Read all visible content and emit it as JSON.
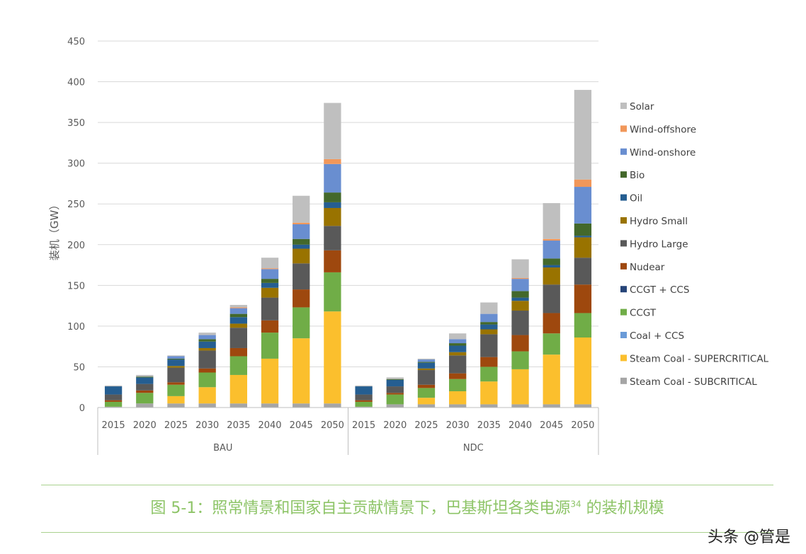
{
  "chart_data": {
    "type": "bar",
    "stacked": true,
    "ylabel": "装机（GW）",
    "ylim": [
      0,
      450
    ],
    "yticks": [
      "0",
      "50",
      "100",
      "150",
      "200",
      "250",
      "300",
      "350",
      "400",
      "450"
    ],
    "grid": true,
    "legend_position": "right",
    "groups": [
      "BAU",
      "NDC"
    ],
    "categories": [
      "2015",
      "2020",
      "2025",
      "2030",
      "2035",
      "2040",
      "2045",
      "2050"
    ],
    "series": [
      {
        "name": "Steam Coal - SUBCRITICAL",
        "color": "#a5a5a5",
        "values": {
          "BAU": [
            1,
            5,
            5,
            5,
            5,
            5,
            5,
            5
          ],
          "NDC": [
            1,
            4,
            4,
            4,
            4,
            4,
            4,
            4
          ]
        }
      },
      {
        "name": "Steam Coal - SUPERCRITICAL",
        "color": "#fbbf2d",
        "values": {
          "BAU": [
            0,
            0,
            9,
            20,
            35,
            55,
            80,
            113
          ],
          "NDC": [
            0,
            0,
            8,
            16,
            28,
            43,
            61,
            82
          ]
        }
      },
      {
        "name": "Coal + CCS",
        "color": "#6a9bd8",
        "values": {
          "BAU": [
            0,
            0,
            0,
            0,
            0,
            0,
            0,
            0
          ],
          "NDC": [
            0,
            0,
            0,
            0,
            0,
            0,
            0,
            0
          ]
        }
      },
      {
        "name": "CCGT",
        "color": "#70ad47",
        "values": {
          "BAU": [
            6,
            13,
            14,
            18,
            23,
            32,
            38,
            48
          ],
          "NDC": [
            6,
            12,
            12,
            15,
            18,
            22,
            26,
            30
          ]
        }
      },
      {
        "name": "CCGT + CCS",
        "color": "#264478",
        "values": {
          "BAU": [
            0,
            0,
            0,
            0,
            0,
            0,
            0,
            0
          ],
          "NDC": [
            0,
            0,
            0,
            0,
            0,
            0,
            0,
            0
          ]
        }
      },
      {
        "name": "Nudear",
        "color": "#9e480e",
        "values": {
          "BAU": [
            2,
            3,
            3,
            5,
            10,
            15,
            22,
            27
          ],
          "NDC": [
            2,
            2,
            4,
            7,
            12,
            20,
            25,
            35
          ]
        }
      },
      {
        "name": "Hydro Large",
        "color": "#595959",
        "values": {
          "BAU": [
            7,
            8,
            18,
            22,
            25,
            28,
            32,
            30
          ],
          "NDC": [
            7,
            8,
            18,
            22,
            28,
            30,
            35,
            33
          ]
        }
      },
      {
        "name": "Hydro Small",
        "color": "#997300",
        "values": {
          "BAU": [
            0,
            0,
            2,
            3,
            5,
            12,
            18,
            22
          ],
          "NDC": [
            0,
            0,
            2,
            4,
            6,
            12,
            21,
            25
          ]
        }
      },
      {
        "name": "Oil",
        "color": "#255e91",
        "values": {
          "BAU": [
            10,
            8,
            8,
            8,
            8,
            6,
            5,
            7
          ],
          "NDC": [
            10,
            8,
            7,
            8,
            6,
            4,
            3,
            2
          ]
        }
      },
      {
        "name": "Bio",
        "color": "#43682b",
        "values": {
          "BAU": [
            0,
            1,
            1,
            3,
            4,
            5,
            7,
            12
          ],
          "NDC": [
            0,
            1,
            1,
            3,
            3,
            8,
            8,
            15
          ]
        }
      },
      {
        "name": "Wind-onshore",
        "color": "#698ed0",
        "values": {
          "BAU": [
            0,
            0,
            3,
            5,
            7,
            12,
            18,
            35
          ],
          "NDC": [
            0,
            0,
            3,
            5,
            10,
            15,
            22,
            45
          ]
        }
      },
      {
        "name": "Wind-offshore",
        "color": "#f1975a",
        "values": {
          "BAU": [
            0,
            0,
            0,
            0,
            1,
            1,
            2,
            6
          ],
          "NDC": [
            0,
            0,
            0,
            0,
            0,
            1,
            2,
            9
          ]
        }
      },
      {
        "name": "Solar",
        "color": "#bfbfbf",
        "values": {
          "BAU": [
            1,
            2,
            1,
            3,
            3,
            13,
            33,
            69
          ],
          "NDC": [
            1,
            2,
            1,
            7,
            14,
            23,
            44,
            110
          ]
        }
      }
    ]
  },
  "caption": {
    "text": "图 5-1：照常情景和国家自主贡献情景下，巴基斯坦各类电源",
    "superscript": "34",
    "text_after": " 的装机规模"
  },
  "watermark": "头条 @管是"
}
